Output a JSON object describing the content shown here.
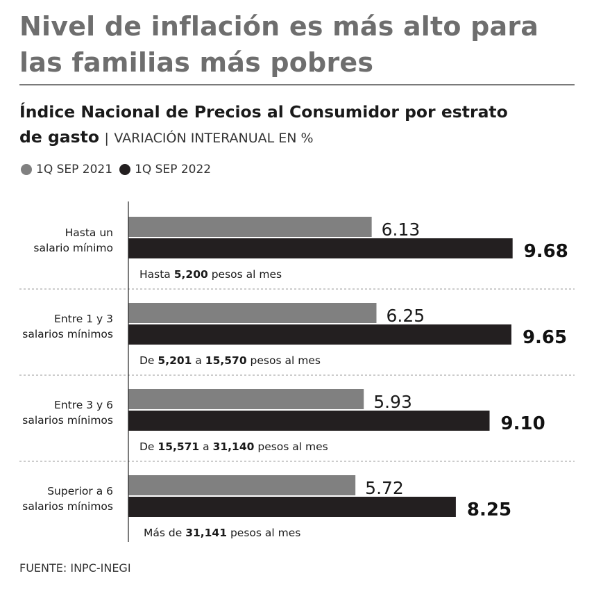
{
  "headline": {
    "line1": "Nivel de inflación es más alto para",
    "line2": "las familias más pobres"
  },
  "subtitle": {
    "title_part1": "Índice Nacional de Precios al Consumidor por estrato",
    "title_part2": "de gasto",
    "separator": "|",
    "unit": "VARIACIÓN INTERANUAL EN %"
  },
  "source": "FUENTE: INPC-INEGI",
  "colors": {
    "series_2021": "#808080",
    "series_2022": "#231f20",
    "divider": "#999999",
    "axis": "#222222"
  },
  "chart_data": {
    "type": "bar",
    "orientation": "horizontal",
    "title": "Índice Nacional de Precios al Consumidor por estrato de gasto",
    "xlabel": "VARIACIÓN INTERANUAL EN %",
    "ylabel": "",
    "xlim": [
      0,
      10.5
    ],
    "grid": false,
    "legend_position": "top-left",
    "categories": [
      {
        "line1": "Hasta un",
        "line2": "salario mínimo"
      },
      {
        "line1": "Entre 1 y 3",
        "line2": "salarios mínimos"
      },
      {
        "line1": "Entre 3 y 6",
        "line2": "salarios mínimos"
      },
      {
        "line1": "Superior a 6",
        "line2": "salarios mínimos"
      }
    ],
    "series": [
      {
        "name": "1Q SEP 2021",
        "values": [
          6.13,
          6.25,
          5.93,
          5.72
        ]
      },
      {
        "name": "1Q SEP 2022",
        "values": [
          9.68,
          9.65,
          9.1,
          8.25
        ]
      }
    ],
    "value_labels": [
      [
        "6.13",
        "6.25",
        "5.93",
        "5.72"
      ],
      [
        "9.68",
        "9.65",
        "9.10",
        "8.25"
      ]
    ],
    "annotations": [
      [
        {
          "text": "Hasta ",
          "bold": false
        },
        {
          "text": "5,200",
          "bold": true
        },
        {
          "text": " pesos al mes",
          "bold": false
        }
      ],
      [
        {
          "text": "De ",
          "bold": false
        },
        {
          "text": "5,201",
          "bold": true
        },
        {
          "text": " a ",
          "bold": false
        },
        {
          "text": "15,570",
          "bold": true
        },
        {
          "text": " pesos al mes",
          "bold": false
        }
      ],
      [
        {
          "text": "De ",
          "bold": false
        },
        {
          "text": "15,571",
          "bold": true
        },
        {
          "text": " a ",
          "bold": false
        },
        {
          "text": "31,140",
          "bold": true
        },
        {
          "text": " pesos al mes",
          "bold": false
        }
      ],
      [
        {
          "text": "Más de ",
          "bold": false
        },
        {
          "text": "31,141",
          "bold": true
        },
        {
          "text": " pesos al mes",
          "bold": false
        }
      ]
    ]
  }
}
